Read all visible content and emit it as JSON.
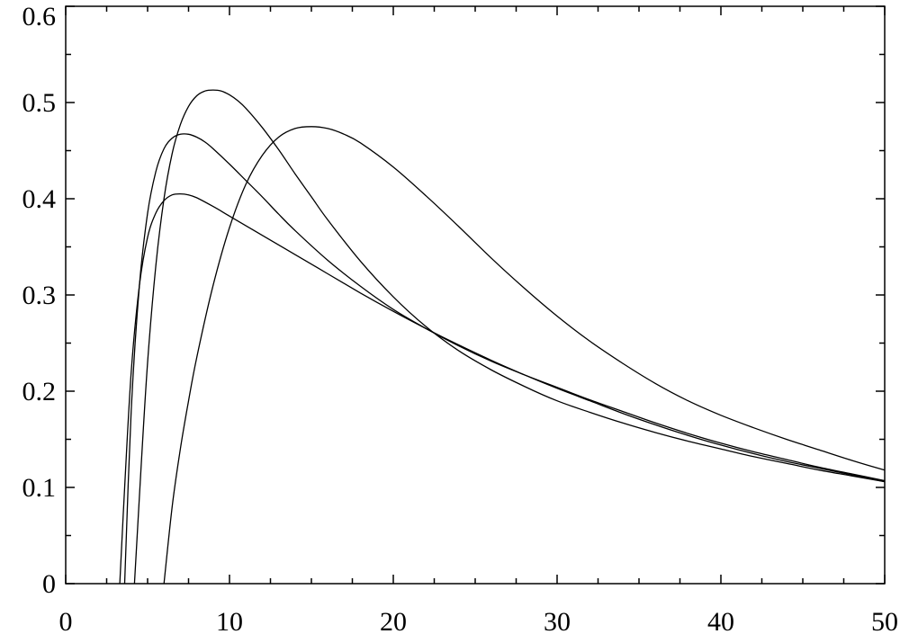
{
  "chart_data": {
    "type": "line",
    "title": "",
    "xlabel": "",
    "ylabel": "",
    "xlim": [
      0,
      50
    ],
    "ylim": [
      0,
      0.6
    ],
    "x_ticks": [
      0,
      10,
      20,
      30,
      40,
      50
    ],
    "x_tick_labels": [
      "0",
      "10",
      "20",
      "30",
      "40",
      "50"
    ],
    "x_minor_step": 2.5,
    "y_ticks": [
      0,
      0.1,
      0.2,
      0.3,
      0.4,
      0.5,
      0.6
    ],
    "y_tick_labels": [
      "0",
      "0.1",
      "0.2",
      "0.3",
      "0.4",
      "0.5",
      "0.6"
    ],
    "y_minor_step": 0.05,
    "grid": false,
    "legend": "none",
    "line_color": "#000000",
    "series": [
      {
        "x": [
          3.3,
          3.6,
          4.0,
          4.5,
          5.0,
          5.5,
          6.0,
          6.5,
          7.0,
          7.5,
          8.0,
          9.0,
          10,
          12,
          14,
          16,
          18,
          20,
          22,
          24,
          26,
          28,
          30,
          32,
          34,
          36,
          38,
          40,
          42,
          44,
          46,
          48,
          50
        ],
        "y": [
          0,
          0.1,
          0.22,
          0.31,
          0.36,
          0.385,
          0.398,
          0.404,
          0.405,
          0.404,
          0.401,
          0.392,
          0.382,
          0.362,
          0.342,
          0.322,
          0.302,
          0.283,
          0.265,
          0.248,
          0.232,
          0.217,
          0.203,
          0.19,
          0.177,
          0.165,
          0.154,
          0.144,
          0.135,
          0.127,
          0.12,
          0.113,
          0.106
        ]
      },
      {
        "x": [
          3.6,
          4.0,
          4.5,
          5.0,
          5.5,
          6.0,
          6.5,
          7.0,
          7.5,
          8.0,
          8.5,
          9.0,
          10,
          11,
          12,
          13,
          14,
          16,
          18,
          20,
          22,
          24,
          26,
          28,
          30,
          32,
          34,
          36,
          38,
          40,
          42,
          44,
          46,
          48,
          50
        ],
        "y": [
          0,
          0.18,
          0.31,
          0.385,
          0.428,
          0.452,
          0.463,
          0.467,
          0.467,
          0.464,
          0.459,
          0.452,
          0.436,
          0.419,
          0.402,
          0.384,
          0.367,
          0.336,
          0.309,
          0.285,
          0.265,
          0.247,
          0.231,
          0.217,
          0.204,
          0.191,
          0.179,
          0.167,
          0.156,
          0.146,
          0.137,
          0.129,
          0.121,
          0.114,
          0.107
        ]
      },
      {
        "x": [
          4.2,
          4.6,
          5.0,
          5.5,
          6.0,
          6.5,
          7.0,
          7.5,
          8.0,
          8.5,
          9.0,
          9.5,
          10,
          10.5,
          11,
          12,
          13,
          14,
          15,
          16,
          18,
          20,
          22,
          24,
          26,
          28,
          30,
          32,
          34,
          36,
          38,
          40,
          42,
          44,
          46,
          48,
          50
        ],
        "y": [
          0,
          0.12,
          0.23,
          0.33,
          0.4,
          0.447,
          0.477,
          0.496,
          0.507,
          0.512,
          0.513,
          0.512,
          0.508,
          0.502,
          0.494,
          0.474,
          0.451,
          0.426,
          0.402,
          0.378,
          0.335,
          0.298,
          0.267,
          0.242,
          0.222,
          0.205,
          0.19,
          0.178,
          0.167,
          0.157,
          0.148,
          0.14,
          0.132,
          0.125,
          0.118,
          0.112,
          0.106
        ]
      },
      {
        "x": [
          6.0,
          6.5,
          7.0,
          7.5,
          8.0,
          9.0,
          10,
          11,
          12,
          13,
          14,
          15,
          16,
          17,
          18,
          20,
          22,
          24,
          26,
          28,
          30,
          32,
          34,
          36,
          38,
          40,
          42,
          44,
          46,
          48,
          50
        ],
        "y": [
          0,
          0.08,
          0.14,
          0.19,
          0.235,
          0.31,
          0.37,
          0.415,
          0.445,
          0.464,
          0.473,
          0.475,
          0.473,
          0.467,
          0.458,
          0.433,
          0.403,
          0.371,
          0.338,
          0.307,
          0.278,
          0.252,
          0.229,
          0.208,
          0.19,
          0.175,
          0.162,
          0.15,
          0.139,
          0.128,
          0.118
        ]
      }
    ]
  }
}
